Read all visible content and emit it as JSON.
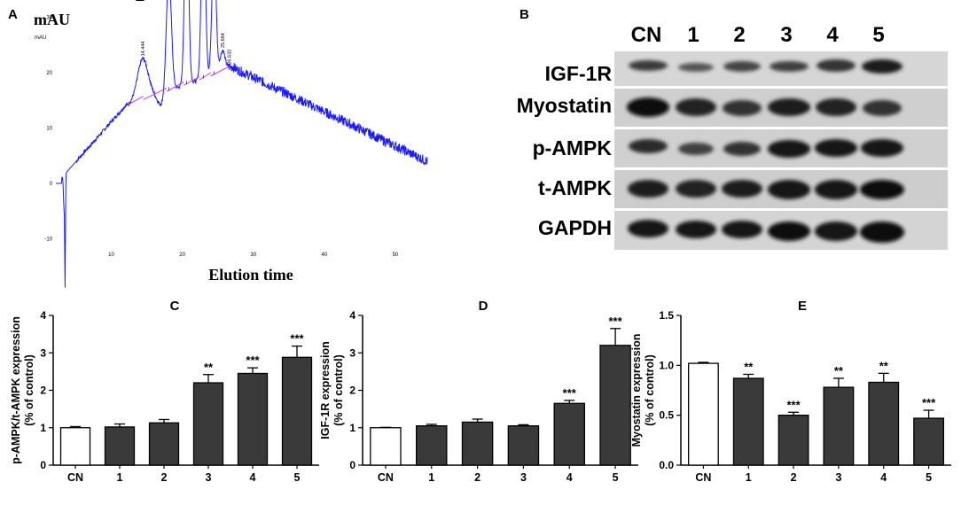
{
  "panels": {
    "A": "A",
    "B": "B",
    "C": "C",
    "D": "D",
    "E": "E"
  },
  "chromatogram": {
    "y_unit_big": "mAU",
    "y_unit_small": "mAU",
    "xlabel": "Elution time",
    "y_ticks": [
      "-20",
      "-10",
      "0",
      "10",
      "20",
      "30",
      "40",
      "50"
    ],
    "x_ticks": [
      "10",
      "20",
      "30",
      "40",
      "50"
    ],
    "peak_numbers": [
      "1",
      "2",
      "3",
      "4",
      "5"
    ],
    "peak_labels": [
      "14.444",
      "18.110",
      "20.606",
      "22.973",
      "24.462",
      "25.664",
      "26.633"
    ],
    "peaks_rt": [
      14.444,
      18.11,
      20.606,
      22.973,
      24.462,
      25.664,
      26.633
    ],
    "peaks_height": [
      22.5,
      38,
      53,
      52,
      44,
      24,
      21
    ]
  },
  "blot": {
    "columns": [
      "CN",
      "1",
      "2",
      "3",
      "4",
      "5"
    ],
    "rows": [
      "IGF-1R",
      "Myostatin",
      "p-AMPK",
      "t-AMPK",
      "GAPDH"
    ]
  },
  "colors": {
    "trace": "#1a1aff",
    "baseline": "#d03cd0",
    "bar_dark": "#3a3a3a",
    "bar_control": "#ffffff"
  },
  "chart_data": [
    {
      "type": "bar",
      "title": "C",
      "ylabel": "p-AMPK/t-AMPK expression\n(% of control)",
      "categories": [
        "CN",
        "1",
        "2",
        "3",
        "4",
        "5"
      ],
      "values": [
        1.0,
        1.02,
        1.13,
        2.2,
        2.45,
        2.88
      ],
      "errors": [
        0.03,
        0.08,
        0.09,
        0.22,
        0.15,
        0.3
      ],
      "significance": [
        "",
        "",
        "",
        "**",
        "***",
        "***"
      ],
      "ylim": [
        0,
        4
      ],
      "yticks": [
        "0",
        "1",
        "2",
        "3",
        "4"
      ]
    },
    {
      "type": "bar",
      "title": "D",
      "ylabel": "IGF-1R expression\n(% of control)",
      "categories": [
        "CN",
        "1",
        "2",
        "3",
        "4",
        "5"
      ],
      "values": [
        1.0,
        1.05,
        1.15,
        1.05,
        1.65,
        3.2
      ],
      "errors": [
        0.01,
        0.04,
        0.08,
        0.03,
        0.08,
        0.45
      ],
      "significance": [
        "",
        "",
        "",
        "",
        "***",
        "***"
      ],
      "ylim": [
        0,
        4
      ],
      "yticks": [
        "0",
        "1",
        "2",
        "3",
        "4"
      ]
    },
    {
      "type": "bar",
      "title": "E",
      "ylabel": "Myostatin expression\n(% of control)",
      "categories": [
        "CN",
        "1",
        "2",
        "3",
        "4",
        "5"
      ],
      "values": [
        1.02,
        0.87,
        0.5,
        0.78,
        0.83,
        0.47
      ],
      "errors": [
        0.01,
        0.04,
        0.03,
        0.09,
        0.09,
        0.08
      ],
      "significance": [
        "",
        "**",
        "***",
        "**",
        "**",
        "***"
      ],
      "ylim": [
        0,
        1.5
      ],
      "yticks": [
        "0.0",
        "0.5",
        "1.0",
        "1.5"
      ]
    }
  ]
}
